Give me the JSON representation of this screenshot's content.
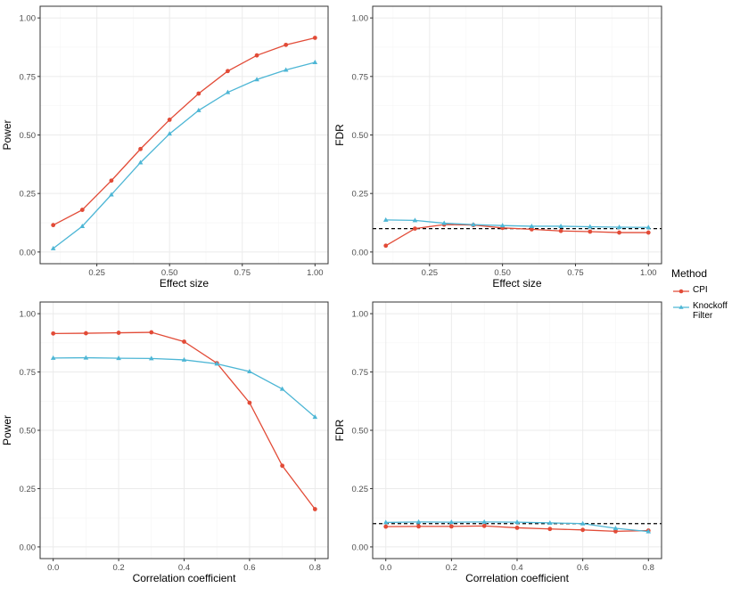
{
  "colors": {
    "cpi": "#E24B37",
    "knockoff": "#4DB6D5",
    "grid_major": "#ebebeb",
    "grid_minor": "#f5f5f5",
    "reference": "#000000"
  },
  "legend": {
    "title": "Method",
    "items": [
      {
        "label": "CPI",
        "marker": "circle",
        "color": "#E24B37"
      },
      {
        "label": "Knockoff Filter",
        "marker": "triangle",
        "color": "#4DB6D5"
      }
    ]
  },
  "chart_data": [
    {
      "type": "line",
      "panel": "top-left",
      "xlabel": "Effect size",
      "ylabel": "Power",
      "xlim": [
        0.055,
        1.045
      ],
      "ylim": [
        -0.05,
        1.05
      ],
      "xticks": [
        0.25,
        0.5,
        0.75,
        1.0
      ],
      "xtick_labels": [
        "0.25",
        "0.50",
        "0.75",
        "1.00"
      ],
      "yticks": [
        0,
        0.25,
        0.5,
        0.75,
        1.0
      ],
      "ytick_labels": [
        "0.00",
        "0.25",
        "0.50",
        "0.75",
        "1.00"
      ],
      "x": [
        0.1,
        0.2,
        0.3,
        0.4,
        0.5,
        0.6,
        0.7,
        0.8,
        0.9,
        1.0
      ],
      "series": [
        {
          "name": "CPI",
          "marker": "circle",
          "color": "#E24B37",
          "values": [
            0.115,
            0.18,
            0.305,
            0.44,
            0.565,
            0.677,
            0.773,
            0.84,
            0.885,
            0.915
          ]
        },
        {
          "name": "Knockoff Filter",
          "marker": "triangle",
          "color": "#4DB6D5",
          "values": [
            0.015,
            0.11,
            0.245,
            0.382,
            0.505,
            0.605,
            0.682,
            0.737,
            0.778,
            0.81
          ]
        }
      ]
    },
    {
      "type": "line",
      "panel": "top-right",
      "xlabel": "Effect size",
      "ylabel": "FDR",
      "xlim": [
        0.055,
        1.045
      ],
      "ylim": [
        -0.05,
        1.05
      ],
      "xticks": [
        0.25,
        0.5,
        0.75,
        1.0
      ],
      "xtick_labels": [
        "0.25",
        "0.50",
        "0.75",
        "1.00"
      ],
      "yticks": [
        0,
        0.25,
        0.5,
        0.75,
        1.0
      ],
      "ytick_labels": [
        "0.00",
        "0.25",
        "0.50",
        "0.75",
        "1.00"
      ],
      "reference_line": 0.1,
      "x": [
        0.1,
        0.2,
        0.3,
        0.4,
        0.5,
        0.6,
        0.7,
        0.8,
        0.9,
        1.0
      ],
      "series": [
        {
          "name": "CPI",
          "marker": "circle",
          "color": "#E24B37",
          "values": [
            0.027,
            0.1,
            0.117,
            0.115,
            0.103,
            0.097,
            0.09,
            0.087,
            0.083,
            0.083
          ]
        },
        {
          "name": "Knockoff Filter",
          "marker": "triangle",
          "color": "#4DB6D5",
          "values": [
            0.137,
            0.135,
            0.123,
            0.117,
            0.113,
            0.11,
            0.11,
            0.108,
            0.106,
            0.105
          ]
        }
      ]
    },
    {
      "type": "line",
      "panel": "bottom-left",
      "xlabel": "Correlation coefficient",
      "ylabel": "Power",
      "xlim": [
        -0.04,
        0.84
      ],
      "ylim": [
        -0.05,
        1.05
      ],
      "xticks": [
        0,
        0.2,
        0.4,
        0.6,
        0.8
      ],
      "xtick_labels": [
        "0.0",
        "0.2",
        "0.4",
        "0.6",
        "0.8"
      ],
      "yticks": [
        0,
        0.25,
        0.5,
        0.75,
        1.0
      ],
      "ytick_labels": [
        "0.00",
        "0.25",
        "0.50",
        "0.75",
        "1.00"
      ],
      "x": [
        0,
        0.1,
        0.2,
        0.3,
        0.4,
        0.5,
        0.6,
        0.7,
        0.8
      ],
      "series": [
        {
          "name": "CPI",
          "marker": "circle",
          "color": "#E24B37",
          "values": [
            0.915,
            0.916,
            0.918,
            0.92,
            0.88,
            0.788,
            0.618,
            0.348,
            0.162
          ]
        },
        {
          "name": "Knockoff Filter",
          "marker": "triangle",
          "color": "#4DB6D5",
          "values": [
            0.81,
            0.811,
            0.809,
            0.808,
            0.802,
            0.785,
            0.752,
            0.677,
            0.557
          ]
        }
      ]
    },
    {
      "type": "line",
      "panel": "bottom-right",
      "xlabel": "Correlation coefficient",
      "ylabel": "FDR",
      "xlim": [
        -0.04,
        0.84
      ],
      "ylim": [
        -0.05,
        1.05
      ],
      "xticks": [
        0,
        0.2,
        0.4,
        0.6,
        0.8
      ],
      "xtick_labels": [
        "0.0",
        "0.2",
        "0.4",
        "0.6",
        "0.8"
      ],
      "yticks": [
        0,
        0.25,
        0.5,
        0.75,
        1.0
      ],
      "ytick_labels": [
        "0.00",
        "0.25",
        "0.50",
        "0.75",
        "1.00"
      ],
      "reference_line": 0.1,
      "x": [
        0,
        0.1,
        0.2,
        0.3,
        0.4,
        0.5,
        0.6,
        0.7,
        0.8
      ],
      "series": [
        {
          "name": "CPI",
          "marker": "circle",
          "color": "#E24B37",
          "values": [
            0.087,
            0.088,
            0.088,
            0.09,
            0.082,
            0.077,
            0.073,
            0.067,
            0.07
          ]
        },
        {
          "name": "Knockoff Filter",
          "marker": "triangle",
          "color": "#4DB6D5",
          "values": [
            0.105,
            0.107,
            0.106,
            0.107,
            0.106,
            0.103,
            0.1,
            0.08,
            0.066
          ]
        }
      ]
    }
  ]
}
